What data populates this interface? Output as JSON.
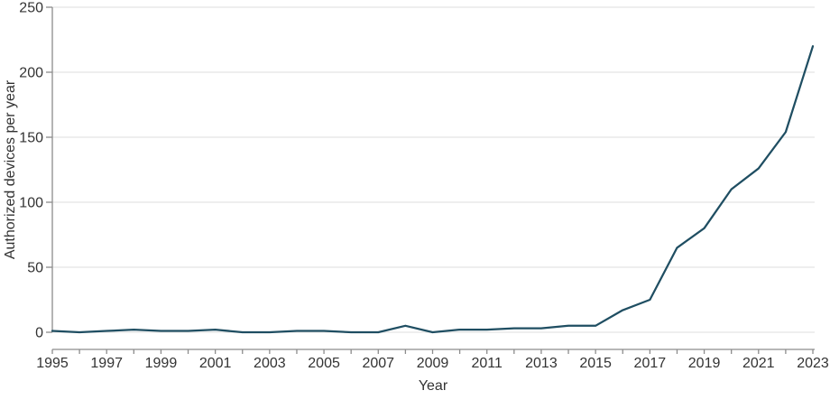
{
  "chart_data": {
    "type": "line",
    "title": "",
    "xlabel": "Year",
    "ylabel": "Authorized devices per year",
    "x": [
      1995,
      1996,
      1997,
      1998,
      1999,
      2000,
      2001,
      2002,
      2003,
      2004,
      2005,
      2006,
      2007,
      2008,
      2009,
      2010,
      2011,
      2012,
      2013,
      2014,
      2015,
      2016,
      2017,
      2018,
      2019,
      2020,
      2021,
      2022,
      2023
    ],
    "series": [
      {
        "name": "Authorized devices per year",
        "values": [
          1,
          0,
          1,
          2,
          1,
          1,
          2,
          0,
          0,
          1,
          1,
          0,
          0,
          5,
          0,
          2,
          2,
          3,
          3,
          5,
          5,
          17,
          25,
          65,
          80,
          110,
          126,
          154,
          220
        ]
      }
    ],
    "ylim": [
      0,
      250
    ],
    "yticks": [
      0,
      50,
      100,
      150,
      200,
      250
    ],
    "xticks_labeled": [
      1995,
      1997,
      1999,
      2001,
      2003,
      2005,
      2007,
      2009,
      2011,
      2013,
      2015,
      2017,
      2019,
      2021,
      2023
    ],
    "grid": "horizontal",
    "legend": "none",
    "colors": {
      "line": "#1f4e62",
      "grid": "#e4e4e4",
      "axis": "#8c8c8c",
      "text": "#333333",
      "background": "#ffffff"
    }
  }
}
